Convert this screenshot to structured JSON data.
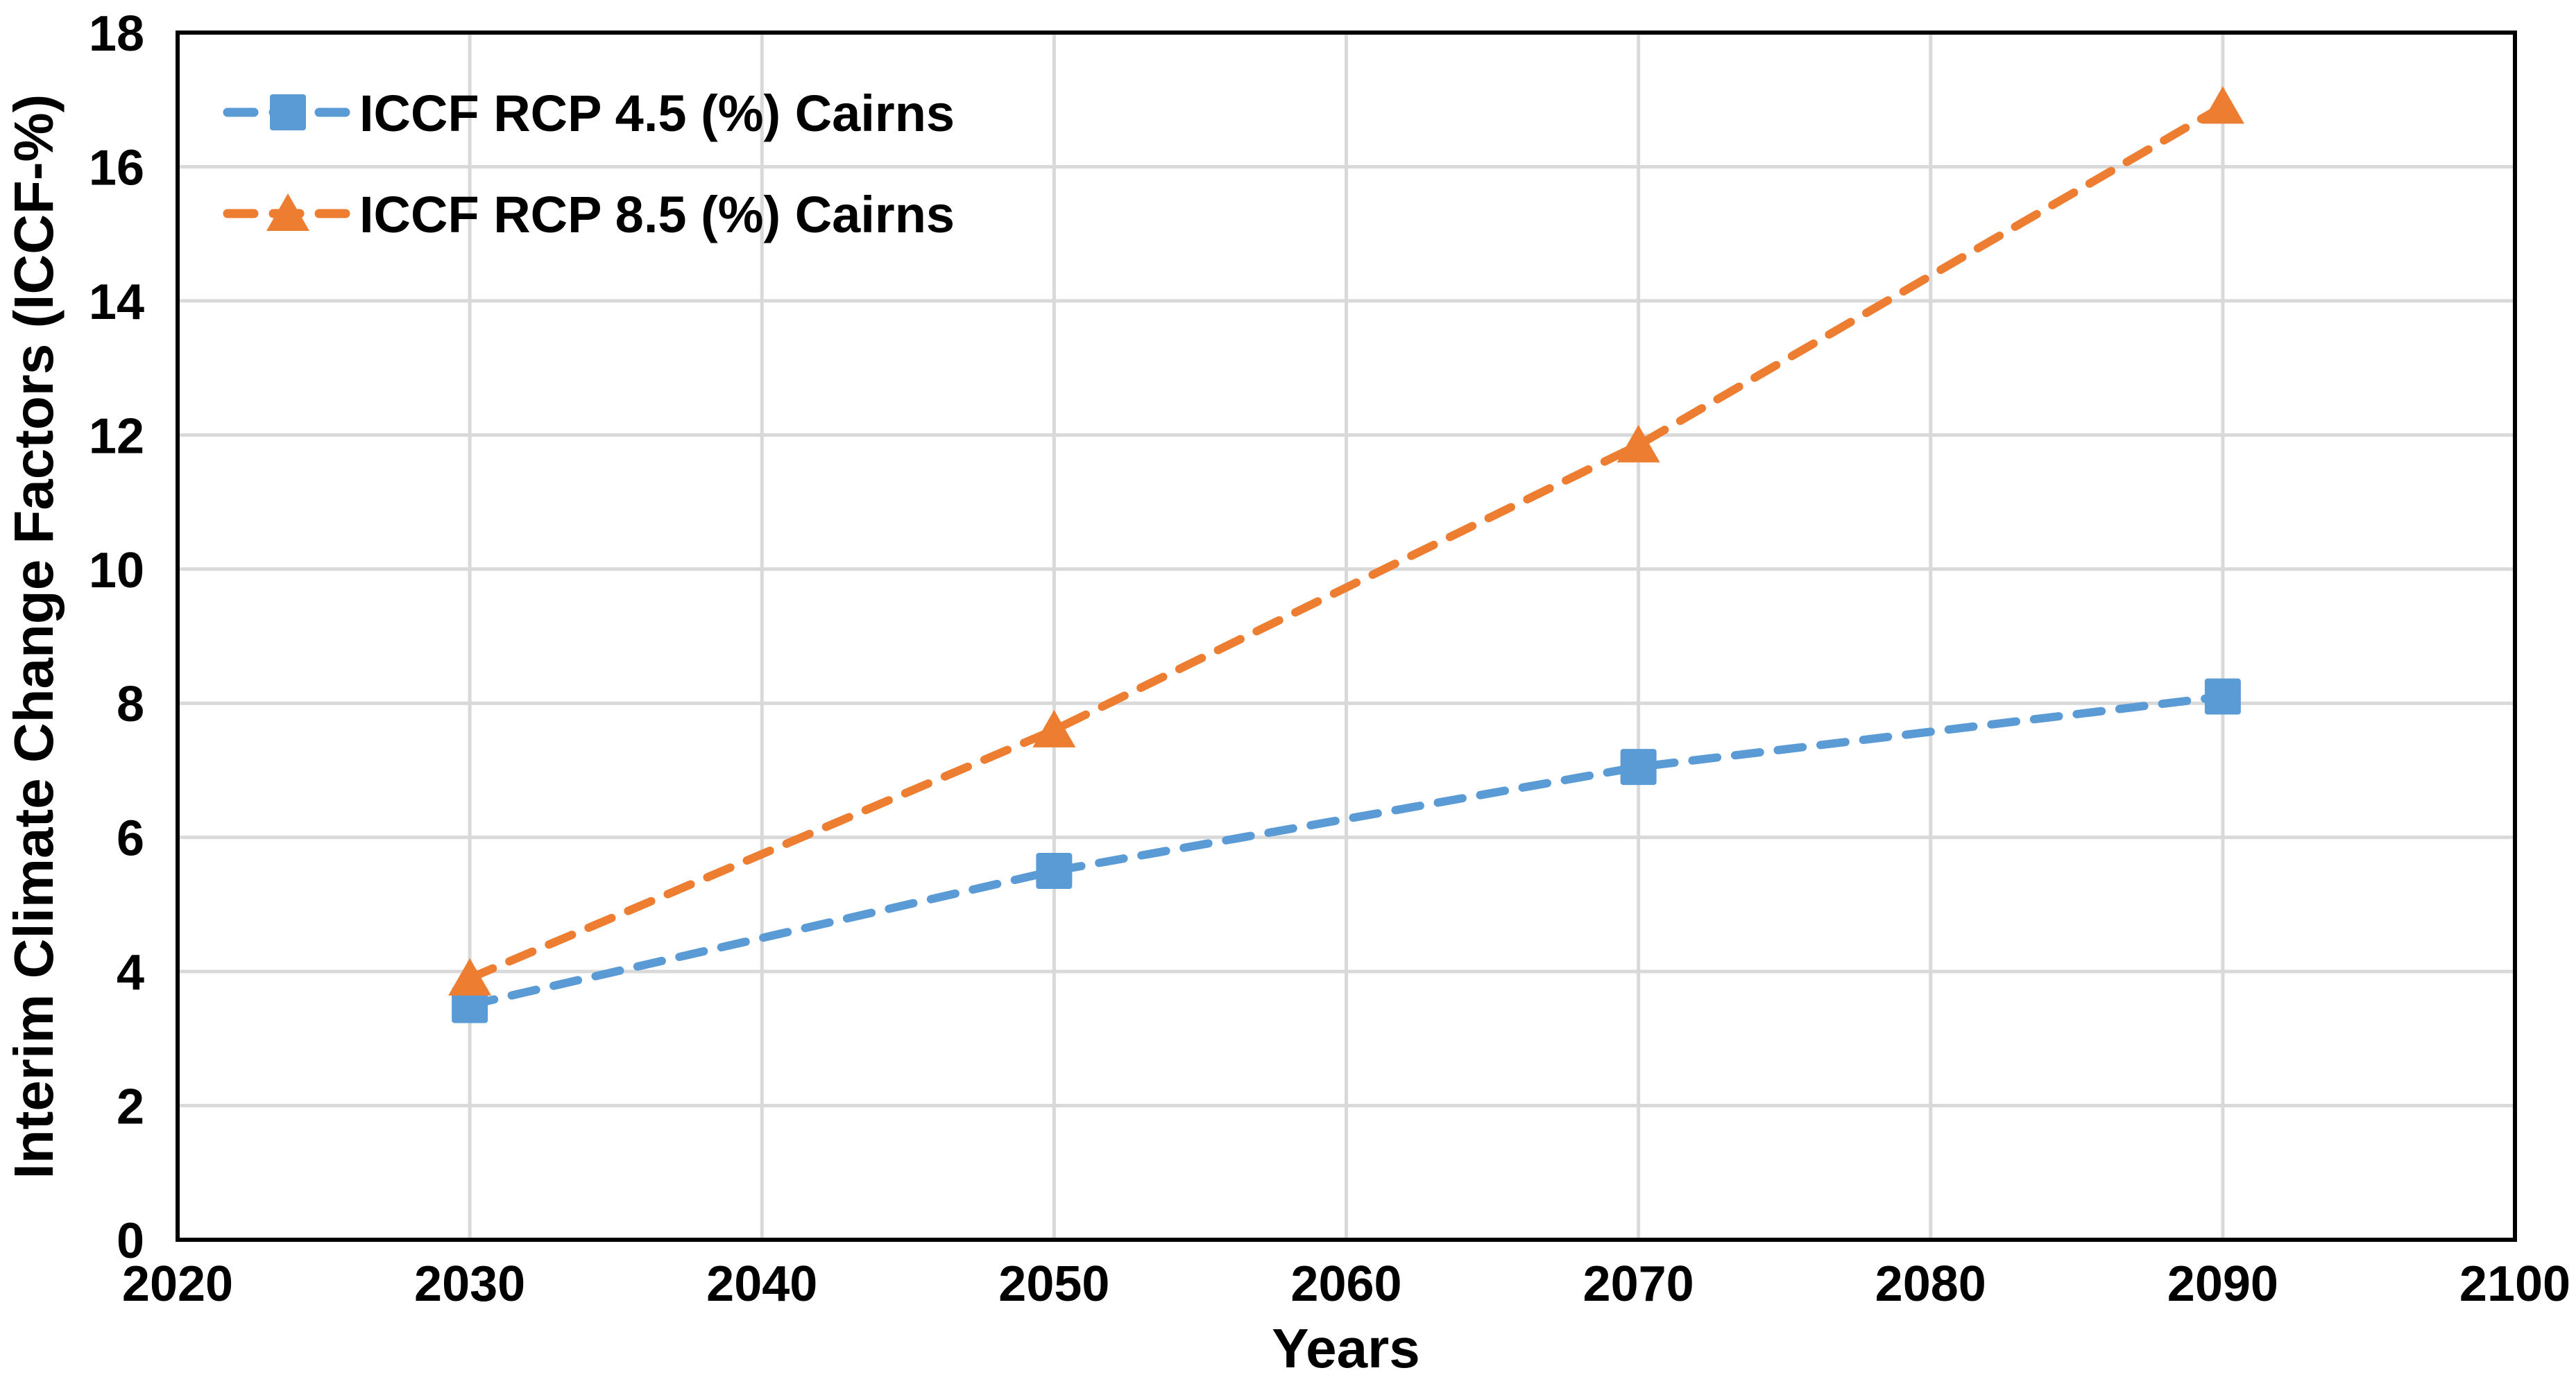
{
  "chart_data": {
    "type": "line",
    "title": "",
    "xlabel": "Years",
    "ylabel": "Interim Climate Change Factors (ICCF-%)",
    "xlim": [
      2020,
      2100
    ],
    "ylim": [
      0,
      18
    ],
    "xticks": [
      2020,
      2030,
      2040,
      2050,
      2060,
      2070,
      2080,
      2090,
      2100
    ],
    "xtick_labels": [
      "2020",
      "2030",
      "2040",
      "2050",
      "2060",
      "2070",
      "2080",
      "2090",
      "2100"
    ],
    "yticks": [
      0,
      2,
      4,
      6,
      8,
      10,
      12,
      14,
      16,
      18
    ],
    "ytick_labels": [
      "0",
      "2",
      "4",
      "6",
      "8",
      "10",
      "12",
      "14",
      "16",
      "18"
    ],
    "grid": true,
    "gridline_color": "#D9D9D9",
    "axis_color": "#000000",
    "legend_position": "top-left-inside",
    "x": [
      2030,
      2050,
      2070,
      2090
    ],
    "series": [
      {
        "name": "ICCF RCP 4.5 (%) Cairns",
        "values": [
          3.5,
          5.5,
          7.05,
          8.1
        ],
        "color": "#5B9BD5",
        "marker": "square",
        "line_style": "dashed"
      },
      {
        "name": "ICCF RCP 8.5 (%) Cairns",
        "values": [
          3.9,
          7.6,
          11.85,
          16.9
        ],
        "color": "#ED7D31",
        "marker": "triangle",
        "line_style": "dashed"
      }
    ]
  }
}
